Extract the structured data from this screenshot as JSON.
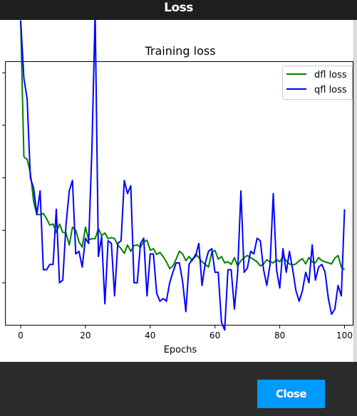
{
  "window": {
    "title": "Loss"
  },
  "footer": {
    "close_label": "Close"
  },
  "colors": {
    "titlebar_bg": "#1e1e1e",
    "footer_bg": "#2b2b2b",
    "button_bg": "#0099ff",
    "series_dfl": "#008000",
    "series_qfl": "#0000ff"
  },
  "chart_data": {
    "type": "line",
    "title": "Training loss",
    "xlabel": "Epochs",
    "ylabel": "",
    "xlim": [
      -5,
      101
    ],
    "x_ticks": [
      0,
      20,
      40,
      60,
      80,
      100
    ],
    "legend_position": "top-right",
    "grid": false,
    "series": [
      {
        "name": "dfl loss",
        "color": "#008000",
        "values": [
          5.0,
          2.4,
          2.35,
          2.1,
          1.55,
          1.3,
          1.3,
          1.32,
          1.22,
          1.1,
          1.12,
          0.96,
          1.12,
          0.96,
          0.95,
          0.72,
          1.06,
          1.0,
          0.78,
          0.68,
          1.06,
          0.82,
          0.84,
          0.84,
          1.03,
          0.9,
          0.95,
          0.84,
          0.86,
          0.84,
          0.72,
          0.65,
          0.56,
          0.72,
          0.6,
          0.71,
          0.72,
          0.68,
          0.78,
          0.81,
          0.62,
          0.65,
          0.54,
          0.58,
          0.5,
          0.4,
          0.27,
          0.32,
          0.45,
          0.6,
          0.55,
          0.42,
          0.5,
          0.42,
          0.55,
          0.48,
          0.4,
          0.35,
          0.3,
          0.58,
          0.62,
          0.45,
          0.5,
          0.38,
          0.4,
          0.35,
          0.48,
          0.32,
          0.42,
          0.48,
          0.52,
          0.48,
          0.44,
          0.4,
          0.32,
          0.36,
          0.44,
          0.4,
          0.38,
          0.44,
          0.4,
          0.5,
          0.42,
          0.36,
          0.34,
          0.36,
          0.42,
          0.46,
          0.36,
          0.48,
          0.4,
          0.38,
          0.48,
          0.42,
          0.4,
          0.38,
          0.36,
          0.47,
          0.52,
          0.3,
          0.25
        ]
      },
      {
        "name": "qfl loss",
        "color": "#0000ff",
        "values": [
          5.0,
          3.9,
          3.5,
          2.0,
          1.8,
          1.3,
          1.75,
          0.25,
          0.25,
          0.35,
          0.35,
          1.4,
          0.0,
          0.05,
          1.1,
          1.75,
          1.95,
          0.55,
          0.6,
          0.3,
          0.85,
          0.75,
          2.55,
          5.15,
          0.5,
          0.88,
          -0.4,
          0.8,
          0.75,
          -0.25,
          0.75,
          0.8,
          1.95,
          1.7,
          1.85,
          0.0,
          0.0,
          0.75,
          0.85,
          -0.25,
          0.55,
          0.55,
          -0.2,
          -0.35,
          -0.3,
          -0.35,
          0.0,
          0.2,
          0.38,
          0.38,
          0.02,
          -0.55,
          0.35,
          0.45,
          0.5,
          0.75,
          -0.05,
          0.38,
          0.6,
          0.65,
          0.2,
          0.2,
          -0.75,
          -0.9,
          0.25,
          0.25,
          -0.5,
          0.2,
          1.75,
          0.2,
          0.28,
          0.6,
          0.55,
          0.85,
          0.8,
          0.25,
          -0.05,
          0.35,
          1.7,
          0.25,
          -0.1,
          0.65,
          0.2,
          0.6,
          0.25,
          -0.15,
          -0.35,
          -0.15,
          0.2,
          0.0,
          0.72,
          0.05,
          0.3,
          0.35,
          0.2,
          -0.3,
          -0.6,
          -0.5,
          -0.05,
          -0.25,
          1.4
        ]
      }
    ]
  }
}
